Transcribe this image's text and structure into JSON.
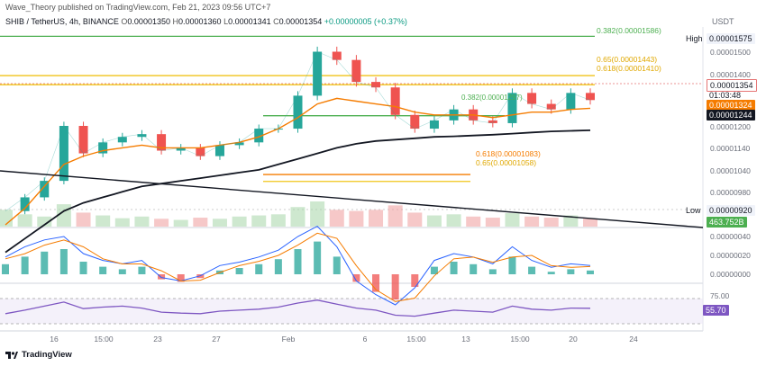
{
  "header": {
    "publisher": "Wave_Theory published on TradingView.com, Feb 21, 2023 09:56 UTC+7",
    "symbol": "SHIB / TetherUS, 4h, BINANCE",
    "open_label": "O",
    "open": "0.00001350",
    "high_label": "H",
    "high": "0.00001360",
    "low_label": "L",
    "low": "0.00001341",
    "close_label": "C",
    "close": "0.00001354",
    "change": "+0.00000005 (+0.37%)",
    "quote": "USDT"
  },
  "price_axis": {
    "ticks": [
      "0.00001500",
      "0.00001400",
      "0.00001200",
      "0.00001140",
      "0.00001040",
      "0.00000980"
    ],
    "high_label": "High",
    "high_value": "0.00001575",
    "last_price": "0.00001354",
    "countdown": "01:03:48",
    "ma_orange": "0.00001324",
    "ma_black": "0.00001244",
    "low_label": "Low",
    "low_value": "0.00000920",
    "volume": "463.752B"
  },
  "fib_levels": [
    {
      "label": "0.382(0.00001586)",
      "price": 1.586e-05,
      "color": "#4caf50"
    },
    {
      "label": "0.65(0.00001443)",
      "price": 1.443e-05,
      "color": "#f0c419"
    },
    {
      "label": "0.618(0.00001410)",
      "price": 1.41e-05,
      "color": "#f0c419"
    },
    {
      "label": "0.382(0.00001297)",
      "price": 1.297e-05,
      "color": "#4caf50"
    },
    {
      "label": "0.618(0.00001083)",
      "price": 1.083e-05,
      "color": "#f57c00"
    },
    {
      "label": "0.65(0.00001058)",
      "price": 1.058e-05,
      "color": "#f0c419"
    }
  ],
  "macd_axis": [
    "0.00000040",
    "0.00000020",
    "0.00000000"
  ],
  "rsi": {
    "top": "75.00",
    "value": "55.70"
  },
  "x_labels": [
    "16",
    "15:00",
    "23",
    "27",
    "Feb",
    "6",
    "15:00",
    "13",
    "15:00",
    "20",
    "24"
  ],
  "footer": "TradingView",
  "chart_data": {
    "type": "line",
    "title": "SHIB / TetherUS, 4h, BINANCE",
    "price_series": [
      9.5e-06,
      1e-05,
      1.06e-05,
      1.26e-05,
      1.16e-05,
      1.2e-05,
      1.22e-05,
      1.23e-05,
      1.17e-05,
      1.18e-05,
      1.15e-05,
      1.19e-05,
      1.2e-05,
      1.25e-05,
      1.25e-05,
      1.37e-05,
      1.53e-05,
      1.5e-05,
      1.42e-05,
      1.4e-05,
      1.3e-05,
      1.25e-05,
      1.28e-05,
      1.32e-05,
      1.28e-05,
      1.27e-05,
      1.38e-05,
      1.34e-05,
      1.32e-05,
      1.38e-05,
      1.354e-05
    ],
    "ma_orange": [
      9e-06,
      9.6e-06,
      1.04e-05,
      1.12e-05,
      1.15e-05,
      1.17e-05,
      1.18e-05,
      1.19e-05,
      1.18e-05,
      1.18e-05,
      1.18e-05,
      1.19e-05,
      1.2e-05,
      1.22e-05,
      1.25e-05,
      1.29e-05,
      1.34e-05,
      1.36e-05,
      1.35e-05,
      1.34e-05,
      1.33e-05,
      1.31e-05,
      1.3e-05,
      1.3e-05,
      1.3e-05,
      1.29e-05,
      1.3e-05,
      1.31e-05,
      1.31e-05,
      1.32e-05,
      1.324e-05
    ],
    "ma_black": [
      8e-06,
      8.5e-06,
      9e-06,
      9.5e-06,
      9.8e-06,
      1e-05,
      1.02e-05,
      1.04e-05,
      1.05e-05,
      1.06e-05,
      1.07e-05,
      1.08e-05,
      1.09e-05,
      1.1e-05,
      1.12e-05,
      1.14e-05,
      1.16e-05,
      1.18e-05,
      1.195e-05,
      1.205e-05,
      1.21e-05,
      1.215e-05,
      1.22e-05,
      1.222e-05,
      1.225e-05,
      1.228e-05,
      1.232e-05,
      1.236e-05,
      1.24e-05,
      1.242e-05,
      1.244e-05
    ],
    "volume": [
      30,
      22,
      18,
      40,
      25,
      20,
      15,
      18,
      14,
      12,
      16,
      14,
      18,
      20,
      22,
      35,
      45,
      30,
      28,
      30,
      38,
      25,
      20,
      22,
      18,
      16,
      24,
      18,
      16,
      20,
      14
    ],
    "macd_hist": [
      8,
      14,
      18,
      20,
      10,
      6,
      4,
      6,
      -4,
      -6,
      -3,
      3,
      5,
      8,
      12,
      20,
      26,
      14,
      -6,
      -14,
      -20,
      -10,
      6,
      10,
      8,
      4,
      14,
      6,
      2,
      4,
      3
    ],
    "rsi_values": [
      45,
      52,
      60,
      68,
      55,
      58,
      60,
      56,
      48,
      46,
      45,
      50,
      52,
      54,
      58,
      66,
      72,
      64,
      56,
      52,
      42,
      40,
      46,
      52,
      50,
      48,
      60,
      54,
      52,
      56,
      55.7
    ],
    "ylim": [
      9e-06,
      1.62e-05
    ]
  }
}
